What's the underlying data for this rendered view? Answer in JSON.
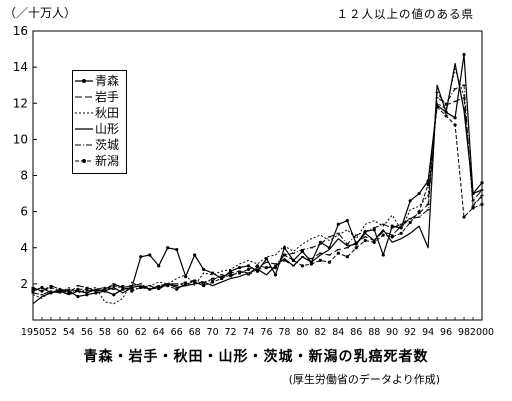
{
  "header": {
    "ylabel": "（／十万人）",
    "note": "１２人以上の値のある県"
  },
  "caption": {
    "title": "青森・岩手・秋田・山形・茨城・新潟の乳癌死者数",
    "subtitle": "(厚生労働省のデータより作成)"
  },
  "chart_data": {
    "type": "line",
    "title": "青森・岩手・秋田・山形・茨城・新潟の乳癌死者数",
    "ylabel": "（／十万人）",
    "ylim": [
      0,
      16
    ],
    "xlim": [
      1950,
      2000
    ],
    "grid": false,
    "legend_position": "top-left",
    "x": [
      1950,
      1951,
      1952,
      1953,
      1954,
      1955,
      1956,
      1957,
      1958,
      1959,
      1960,
      1961,
      1962,
      1963,
      1964,
      1965,
      1966,
      1967,
      1968,
      1969,
      1970,
      1971,
      1972,
      1973,
      1974,
      1975,
      1976,
      1977,
      1978,
      1979,
      1980,
      1981,
      1982,
      1983,
      1984,
      1985,
      1986,
      1987,
      1988,
      1989,
      1990,
      1991,
      1992,
      1993,
      1994,
      1995,
      1996,
      1997,
      1998,
      1999,
      2000
    ],
    "x_tick_labels": [
      "1950",
      "52",
      "54",
      "56",
      "58",
      "60",
      "62",
      "64",
      "66",
      "68",
      "70",
      "72",
      "74",
      "76",
      "78",
      "80",
      "82",
      "84",
      "86",
      "88",
      "90",
      "92",
      "94",
      "96",
      "98",
      "2000"
    ],
    "y_ticks": [
      2,
      4,
      6,
      8,
      10,
      12,
      14,
      16
    ],
    "series": [
      {
        "name": "青森",
        "style": "solid-marker",
        "values": [
          1.6,
          1.8,
          1.5,
          1.7,
          1.6,
          1.3,
          1.4,
          1.5,
          1.6,
          1.4,
          1.7,
          1.8,
          3.5,
          3.6,
          3.0,
          4.0,
          3.9,
          2.4,
          3.6,
          2.8,
          2.6,
          2.3,
          2.7,
          2.9,
          3.0,
          2.7,
          3.4,
          2.5,
          4.0,
          3.3,
          3.8,
          3.2,
          4.3,
          4.0,
          5.3,
          5.5,
          4.2,
          4.9,
          5.0,
          3.6,
          5.2,
          5.1,
          6.6,
          7.0,
          7.7,
          11.9,
          11.5,
          11.2,
          14.7,
          7.0,
          7.6
        ]
      },
      {
        "name": "岩手",
        "style": "long-dash",
        "values": [
          1.8,
          1.6,
          1.9,
          1.7,
          1.5,
          1.9,
          1.8,
          1.6,
          1.7,
          2.0,
          1.8,
          1.9,
          2.0,
          1.7,
          1.9,
          2.0,
          1.9,
          2.1,
          2.2,
          2.0,
          2.3,
          2.4,
          2.6,
          2.7,
          2.5,
          2.8,
          2.9,
          3.0,
          3.3,
          3.0,
          3.5,
          3.4,
          3.7,
          3.6,
          3.9,
          4.0,
          4.3,
          4.6,
          4.4,
          4.9,
          4.7,
          5.2,
          5.6,
          5.9,
          6.4,
          12.6,
          11.9,
          12.1,
          12.3,
          6.6,
          7.2
        ]
      },
      {
        "name": "秋田",
        "style": "short-dash",
        "values": [
          1.4,
          1.2,
          1.6,
          1.5,
          1.8,
          1.5,
          1.7,
          1.8,
          1.0,
          0.9,
          1.2,
          2.1,
          1.8,
          1.9,
          2.1,
          2.0,
          2.3,
          2.5,
          1.9,
          2.6,
          2.5,
          2.7,
          2.8,
          3.1,
          3.3,
          3.1,
          3.5,
          3.6,
          4.1,
          3.8,
          4.2,
          4.5,
          4.7,
          4.4,
          4.7,
          5.0,
          4.5,
          5.3,
          5.5,
          5.2,
          5.8,
          5.0,
          6.1,
          6.3,
          6.9,
          12.0,
          11.7,
          13.9,
          12.4,
          6.4,
          6.8
        ]
      },
      {
        "name": "山形",
        "style": "solid",
        "values": [
          0.9,
          1.3,
          1.5,
          1.6,
          1.4,
          1.6,
          1.5,
          1.7,
          1.6,
          1.8,
          1.5,
          1.8,
          1.9,
          1.7,
          1.8,
          2.0,
          1.8,
          1.9,
          2.0,
          2.1,
          1.9,
          2.1,
          2.3,
          2.4,
          2.6,
          2.8,
          2.5,
          3.0,
          3.4,
          3.0,
          3.5,
          3.2,
          3.6,
          3.9,
          4.5,
          4.1,
          4.2,
          4.8,
          4.4,
          5.0,
          4.3,
          4.5,
          4.8,
          5.2,
          4.0,
          13.0,
          11.5,
          14.2,
          11.6,
          7.0,
          7.2
        ]
      },
      {
        "name": "茨城",
        "style": "dash-dot",
        "values": [
          1.5,
          1.4,
          1.6,
          1.5,
          1.7,
          1.6,
          1.6,
          1.7,
          1.8,
          1.7,
          1.9,
          1.7,
          1.8,
          1.9,
          1.7,
          2.0,
          2.0,
          1.9,
          2.2,
          2.1,
          2.2,
          2.5,
          2.4,
          2.7,
          2.6,
          2.9,
          3.2,
          3.1,
          3.6,
          3.7,
          3.9,
          4.0,
          4.2,
          4.6,
          4.8,
          4.2,
          4.7,
          4.9,
          5.1,
          5.3,
          5.1,
          5.3,
          5.6,
          5.7,
          6.1,
          12.3,
          12.0,
          12.8,
          13.0,
          6.3,
          6.9
        ]
      },
      {
        "name": "新潟",
        "style": "dash-marker",
        "values": [
          1.7,
          1.6,
          1.8,
          1.6,
          1.5,
          1.7,
          1.7,
          1.6,
          1.7,
          1.9,
          1.8,
          1.6,
          1.8,
          1.7,
          1.8,
          1.9,
          1.7,
          2.0,
          2.1,
          1.9,
          2.1,
          2.3,
          2.5,
          2.6,
          2.8,
          3.0,
          2.9,
          2.9,
          3.6,
          3.3,
          3.0,
          3.1,
          3.3,
          3.2,
          3.7,
          3.5,
          4.0,
          4.4,
          4.3,
          4.7,
          4.6,
          4.8,
          5.4,
          6.0,
          7.5,
          11.8,
          11.3,
          10.8,
          5.7,
          6.2,
          6.4
        ]
      }
    ]
  }
}
